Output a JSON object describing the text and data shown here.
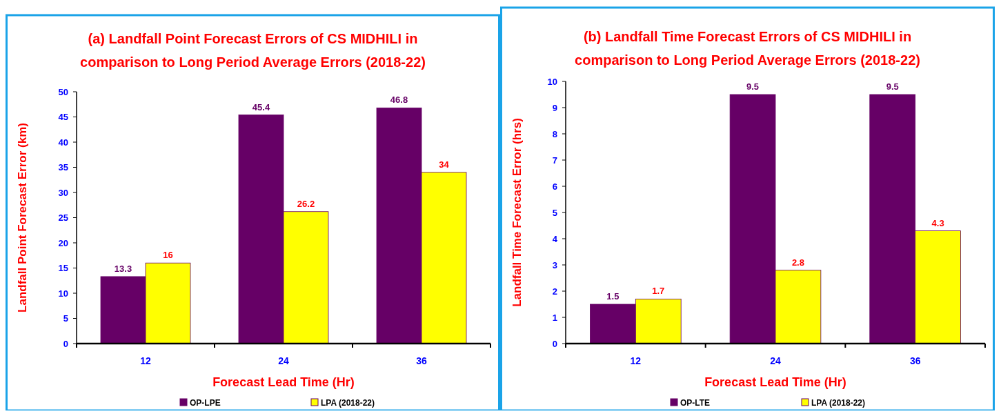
{
  "chart_data": [
    {
      "type": "bar",
      "title": "(a) Landfall Point Forecast Errors of  CS MIDHILI in\ncomparison to Long Period Average Errors (2018-22)",
      "xlabel": "Forecast Lead Time (Hr)",
      "ylabel": "Landfall Point Forecast Error (km)",
      "categories": [
        "12",
        "24",
        "36"
      ],
      "series": [
        {
          "name": "OP-LPE",
          "color": "#660066",
          "values": [
            13.3,
            45.4,
            46.8
          ]
        },
        {
          "name": "LPA (2018-22)",
          "color": "#ffff00",
          "values": [
            16,
            26.2,
            34
          ]
        }
      ],
      "ylim": [
        0,
        50
      ],
      "yticks": [
        0,
        5,
        10,
        15,
        20,
        25,
        30,
        35,
        40,
        45,
        50
      ],
      "data_labels": true,
      "legend": "bottom",
      "grid": false
    },
    {
      "type": "bar",
      "title": "(b) Landfall Time Forecast Errors of  CS MIDHILI in\ncomparison to Long Period Average Errors (2018-22)",
      "xlabel": "Forecast Lead Time (Hr)",
      "ylabel": "Landfall Time Forecast Error (hrs)",
      "categories": [
        "12",
        "24",
        "36"
      ],
      "series": [
        {
          "name": "OP-LTE",
          "color": "#660066",
          "values": [
            1.5,
            9.5,
            9.5
          ]
        },
        {
          "name": "LPA (2018-22)",
          "color": "#ffff00",
          "values": [
            1.7,
            2.8,
            4.3
          ]
        }
      ],
      "ylim": [
        0,
        10
      ],
      "yticks": [
        0,
        1,
        2,
        3,
        4,
        5,
        6,
        7,
        8,
        9,
        10
      ],
      "data_labels": true,
      "legend": "bottom",
      "grid": false
    }
  ]
}
